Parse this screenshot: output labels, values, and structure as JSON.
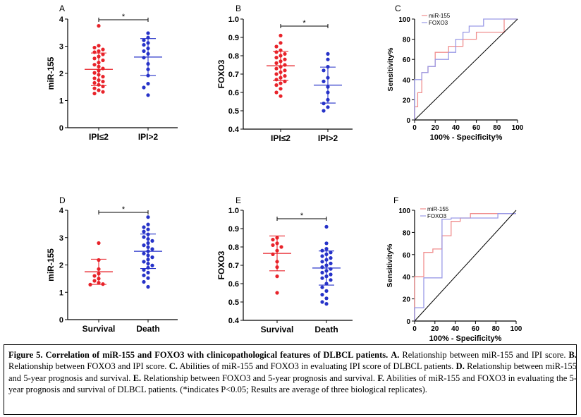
{
  "colors": {
    "red": "#e8232a",
    "blue": "#2632c8",
    "roc_red": "#f08e8e",
    "roc_blue": "#9a9ae6",
    "axis": "#000000"
  },
  "chart_data": [
    {
      "id": "A",
      "type": "scatter",
      "panel_label": "A",
      "ylabel": "miR-155",
      "ylim": [
        0,
        4
      ],
      "yticks": [
        "0",
        "1",
        "2",
        "3",
        "4"
      ],
      "categories": [
        "IPI≤2",
        "IPI>2"
      ],
      "series": [
        {
          "name": "IPI≤2",
          "color": "red",
          "values": [
            3.75,
            3.02,
            2.95,
            2.88,
            2.82,
            2.78,
            2.7,
            2.62,
            2.55,
            2.48,
            2.4,
            2.32,
            2.25,
            2.18,
            2.1,
            2.02,
            1.95,
            1.88,
            1.82,
            1.75,
            1.7,
            1.65,
            1.58,
            1.52,
            1.45,
            1.38,
            1.32,
            1.26
          ],
          "mean": 2.15,
          "sd": 0.6
        },
        {
          "name": "IPI>2",
          "color": "blue",
          "values": [
            3.48,
            3.32,
            3.22,
            3.12,
            3.05,
            2.92,
            2.82,
            2.72,
            2.58,
            2.35,
            2.15,
            1.92,
            1.62,
            1.48,
            1.2
          ],
          "mean": 2.6,
          "sd": 0.68
        }
      ],
      "significance": "*"
    },
    {
      "id": "B",
      "type": "scatter",
      "panel_label": "B",
      "ylabel": "FOXO3",
      "ylim": [
        0.4,
        1.0
      ],
      "yticks": [
        "0.4",
        "0.5",
        "0.6",
        "0.7",
        "0.8",
        "0.9",
        "1.0"
      ],
      "categories": [
        "IPI≤2",
        "IPI>2"
      ],
      "series": [
        {
          "name": "IPI≤2",
          "color": "red",
          "values": [
            0.91,
            0.87,
            0.85,
            0.83,
            0.82,
            0.81,
            0.8,
            0.79,
            0.78,
            0.77,
            0.76,
            0.75,
            0.74,
            0.73,
            0.72,
            0.71,
            0.7,
            0.69,
            0.68,
            0.67,
            0.66,
            0.65,
            0.64,
            0.62,
            0.6,
            0.58
          ],
          "mean": 0.745,
          "sd": 0.08
        },
        {
          "name": "IPI>2",
          "color": "blue",
          "values": [
            0.81,
            0.78,
            0.74,
            0.72,
            0.68,
            0.66,
            0.63,
            0.6,
            0.56,
            0.54,
            0.52,
            0.5
          ],
          "mean": 0.64,
          "sd": 0.098
        }
      ],
      "significance": "*"
    },
    {
      "id": "C",
      "type": "line",
      "panel_label": "C",
      "xlabel": "100% - Specificity%",
      "ylabel": "Sensitivity%",
      "xlim": [
        0,
        100
      ],
      "ylim": [
        0,
        100
      ],
      "xticks": [
        "0",
        "20",
        "40",
        "60",
        "80",
        "100"
      ],
      "yticks": [
        "0",
        "20",
        "40",
        "60",
        "80",
        "100"
      ],
      "series": [
        {
          "name": "miR-155",
          "color": "roc_red",
          "x": [
            0,
            0,
            3,
            3,
            7,
            7,
            13,
            13,
            20,
            20,
            33,
            33,
            47,
            47,
            60,
            60,
            73,
            73,
            87,
            87,
            100
          ],
          "y": [
            0,
            13,
            13,
            27,
            27,
            47,
            47,
            53,
            53,
            67,
            67,
            73,
            73,
            80,
            80,
            87,
            87,
            87,
            87,
            100,
            100
          ]
        },
        {
          "name": "FOXO3",
          "color": "roc_blue",
          "x": [
            0,
            0,
            7,
            7,
            13,
            13,
            20,
            20,
            33,
            33,
            40,
            40,
            47,
            47,
            53,
            53,
            67,
            67,
            100
          ],
          "y": [
            0,
            40,
            40,
            47,
            47,
            53,
            53,
            60,
            60,
            67,
            67,
            80,
            80,
            87,
            87,
            93,
            93,
            100,
            100
          ]
        },
        {
          "name": "reference",
          "color": "axis",
          "x": [
            0,
            100
          ],
          "y": [
            0,
            100
          ]
        }
      ],
      "legend": "top-right"
    },
    {
      "id": "D",
      "type": "scatter",
      "panel_label": "D",
      "ylabel": "miR-155",
      "ylim": [
        0,
        4
      ],
      "yticks": [
        "0",
        "1",
        "2",
        "3",
        "4"
      ],
      "categories": [
        "Survival",
        "Death"
      ],
      "series": [
        {
          "name": "Survival",
          "color": "red",
          "values": [
            2.8,
            2.18,
            1.85,
            1.68,
            1.6,
            1.5,
            1.42,
            1.35,
            1.3,
            1.28
          ],
          "mean": 1.75,
          "sd": 0.46
        },
        {
          "name": "Death",
          "color": "blue",
          "values": [
            3.75,
            3.48,
            3.38,
            3.3,
            3.22,
            3.12,
            3.02,
            2.95,
            2.88,
            2.8,
            2.72,
            2.65,
            2.58,
            2.5,
            2.42,
            2.35,
            2.28,
            2.2,
            2.12,
            2.05,
            1.98,
            1.9,
            1.82,
            1.72,
            1.62,
            1.52,
            1.38,
            1.2
          ],
          "mean": 2.5,
          "sd": 0.63
        }
      ],
      "significance": "*"
    },
    {
      "id": "E",
      "type": "scatter",
      "panel_label": "E",
      "ylabel": "FOXO3",
      "ylim": [
        0.4,
        1.0
      ],
      "yticks": [
        "0.4",
        "0.5",
        "0.6",
        "0.7",
        "0.8",
        "0.9",
        "1.0"
      ],
      "categories": [
        "Survival",
        "Death"
      ],
      "series": [
        {
          "name": "Survival",
          "color": "red",
          "values": [
            0.85,
            0.84,
            0.82,
            0.81,
            0.8,
            0.78,
            0.76,
            0.72,
            0.69,
            0.64,
            0.55
          ],
          "mean": 0.765,
          "sd": 0.095
        },
        {
          "name": "Death",
          "color": "blue",
          "values": [
            0.91,
            0.82,
            0.79,
            0.78,
            0.77,
            0.76,
            0.75,
            0.74,
            0.73,
            0.72,
            0.71,
            0.7,
            0.69,
            0.68,
            0.67,
            0.66,
            0.65,
            0.64,
            0.63,
            0.62,
            0.6,
            0.58,
            0.56,
            0.54,
            0.52,
            0.5,
            0.49
          ],
          "mean": 0.685,
          "sd": 0.093
        }
      ],
      "significance": "*"
    },
    {
      "id": "F",
      "type": "line",
      "panel_label": "F",
      "xlabel": "100% - Specificity%",
      "ylabel": "Sensitivity%",
      "xlim": [
        0,
        100
      ],
      "ylim": [
        0,
        100
      ],
      "xticks": [
        "0",
        "20",
        "40",
        "60",
        "80",
        "100"
      ],
      "yticks": [
        "0",
        "20",
        "40",
        "60",
        "80",
        "100"
      ],
      "series": [
        {
          "name": "miR-155",
          "color": "roc_red",
          "x": [
            0,
            0,
            9,
            9,
            18,
            18,
            27,
            27,
            36,
            36,
            45,
            45,
            55,
            55,
            64,
            64,
            100
          ],
          "y": [
            0,
            40,
            40,
            62,
            62,
            65,
            65,
            77,
            77,
            90,
            90,
            93,
            93,
            97,
            97,
            97,
            97
          ]
        },
        {
          "name": "FOXO3",
          "color": "roc_blue",
          "x": [
            0,
            0,
            9,
            9,
            27,
            27,
            36,
            36,
            82,
            82,
            100
          ],
          "y": [
            0,
            12,
            12,
            39,
            39,
            92,
            92,
            93,
            93,
            97,
            97
          ]
        },
        {
          "name": "reference",
          "color": "axis",
          "x": [
            0,
            100
          ],
          "y": [
            0,
            100
          ]
        }
      ],
      "legend": "top-left"
    }
  ],
  "caption": {
    "title": "Figure 5. Correlation of miR-155 and FOXO3 with clinicopathological features of DLBCL patients.",
    "parts": [
      {
        "label": "A.",
        "text": "Relationship between miR-155 and IPI score."
      },
      {
        "label": "B.",
        "text": "Relationship between FOXO3 and IPI score."
      },
      {
        "label": "C.",
        "text": "Abilities of miR-155 and FOXO3 in evaluating IPI score of DLBCL patients."
      },
      {
        "label": "D.",
        "text": "Relationship between miR-155 and 5-year prognosis and survival."
      },
      {
        "label": "E.",
        "text": "Relationship between FOXO3 and 5-year prognosis and survival."
      },
      {
        "label": "F.",
        "text": "Abilities of miR-155 and FOXO3 in evaluating the 5-year prognosis and survival of DLBCL patients."
      }
    ],
    "note": "(*indicates P<0.05; Results are average of three biological replicates)."
  }
}
